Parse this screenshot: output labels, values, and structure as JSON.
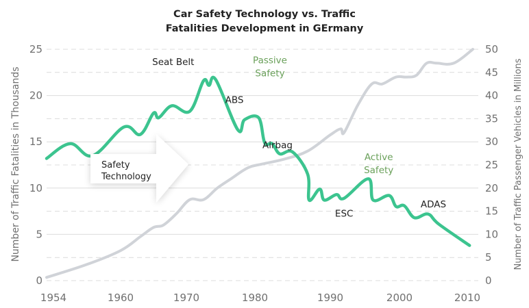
{
  "chart_data": {
    "type": "line",
    "title": [
      "Car Safety Technology vs. Traffic",
      "Fatalities Development in GErmany"
    ],
    "xlabel": "",
    "ylabel": "Number of Traffic Fatalities in Thousands",
    "y2label": "Number of Traffic Passenger Vehicles in Millions",
    "ylim": [
      0,
      25
    ],
    "y2lim": [
      0,
      50
    ],
    "x_ticks": [
      "1954",
      "1960",
      "1970",
      "1980",
      "1990",
      "2000",
      "2010"
    ],
    "x_tick_years": [
      1954,
      1960,
      1970,
      1980,
      1990,
      2000,
      2010
    ],
    "y_ticks": [
      "0",
      "5",
      "10",
      "15",
      "20",
      "25"
    ],
    "y2_ticks": [
      "0",
      "5",
      "10",
      "15",
      "20",
      "25",
      "30",
      "35",
      "40",
      "45",
      "50"
    ],
    "grid": true,
    "series": [
      {
        "name": "Traffic Fatalities (thousands)",
        "axis": "left",
        "color": "#3cc48f",
        "x": [
          1953,
          1955.5,
          1957.5,
          1960.5,
          1963,
          1965,
          1965.8,
          1967.8,
          1970.5,
          1972.5,
          1973.3,
          1974.3,
          1977.5,
          1978.5,
          1980.5,
          1981.3,
          1982.3,
          1983.3,
          1985,
          1987,
          1987.2,
          1988.6,
          1989.2,
          1990.9,
          1992,
          1995.5,
          1996.2,
          1998.5,
          1999.5,
          2000.7,
          2002.2,
          2004.2,
          2005.8,
          2010.2
        ],
        "values": [
          13.2,
          14.8,
          13.5,
          16.6,
          15.8,
          18.1,
          17.6,
          18.9,
          18.3,
          21.6,
          21.1,
          21.7,
          16.3,
          17.4,
          17.6,
          14.9,
          14.8,
          13.7,
          13.9,
          11.5,
          8.7,
          9.9,
          8.7,
          9.3,
          8.9,
          11.0,
          8.7,
          9.2,
          8.0,
          8.1,
          6.8,
          7.2,
          6.1,
          3.8
        ]
      },
      {
        "name": "Passenger Vehicles (millions)",
        "axis": "right",
        "color": "#d0d3d8",
        "x": [
          1953,
          1957,
          1960,
          1963,
          1965,
          1966.5,
          1968.5,
          1970.5,
          1972.5,
          1974.5,
          1976.5,
          1979,
          1981,
          1984,
          1987,
          1990,
          1991.5,
          1992,
          1994,
          1996,
          1997.5,
          1999.5,
          2001,
          2002.5,
          2004,
          2005.5,
          2008,
          2010.5
        ],
        "values": [
          0.7,
          3.5,
          6.5,
          9.5,
          11.5,
          12.0,
          14.5,
          17.5,
          17.5,
          20.0,
          22.0,
          24.4,
          25.2,
          26.3,
          28.0,
          31.5,
          32.8,
          32.0,
          38.0,
          42.5,
          42.5,
          44.0,
          44.0,
          44.4,
          47.0,
          47.0,
          47.0,
          50.0
        ]
      }
    ],
    "annotations": [
      {
        "text": "Seat Belt",
        "year": 1968,
        "value": 23.3,
        "color": "#222222"
      },
      {
        "text": "ABS",
        "year": 1977,
        "value": 19.2,
        "color": "#222222"
      },
      {
        "text": "Airbag",
        "year": 1983,
        "value": 14.3,
        "color": "#222222"
      },
      {
        "text": "ESC",
        "year": 1992,
        "value": 6.9,
        "color": "#222222"
      },
      {
        "text": "ADAS",
        "year": 2005,
        "value": 7.9,
        "color": "#222222"
      },
      {
        "text_lines": [
          "Passive",
          "Safety"
        ],
        "year": 1982,
        "value": 23.5,
        "color": "#6aa05a"
      },
      {
        "text_lines": [
          "Active",
          "Safety"
        ],
        "year": 1997,
        "value": 13.0,
        "color": "#6aa05a"
      }
    ],
    "callout": {
      "text_lines": [
        "Safety",
        "Technology"
      ],
      "shape": "right-arrow"
    },
    "legend": "none"
  }
}
